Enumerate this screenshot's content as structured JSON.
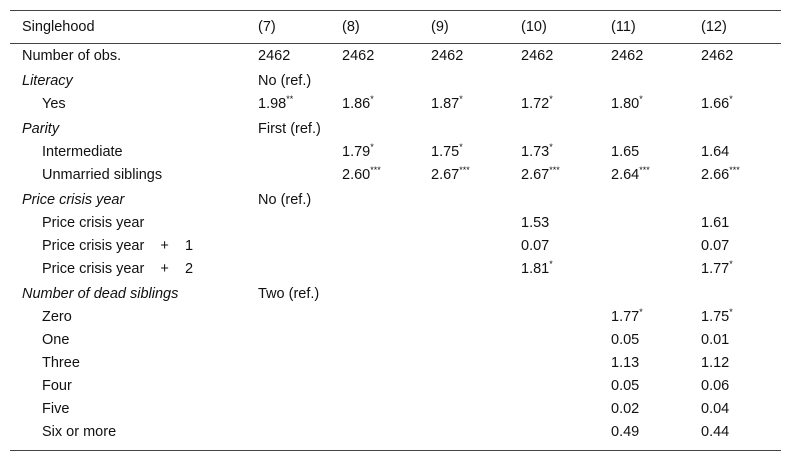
{
  "table": {
    "header": [
      "Singlehood",
      "(7)",
      "(8)",
      "(9)",
      "(10)",
      "(11)",
      "(12)"
    ],
    "rows": [
      {
        "label": "Number of obs.",
        "cells": [
          "2462",
          "2462",
          "2462",
          "2462",
          "2462",
          "2462"
        ]
      },
      {
        "label": "Literacy",
        "italic": true,
        "cells": [
          "No (ref.)",
          null,
          null,
          null,
          null,
          null
        ]
      },
      {
        "label": "Yes",
        "indent": true,
        "cells": [
          {
            "text": "1.98",
            "sig": "**"
          },
          {
            "text": "1.86",
            "sig": "*"
          },
          {
            "text": "1.87",
            "sig": "*"
          },
          {
            "text": "1.72",
            "sig": "*"
          },
          {
            "text": "1.80",
            "sig": "*"
          },
          {
            "text": "1.66",
            "sig": "*"
          }
        ]
      },
      {
        "label": "Parity",
        "italic": true,
        "cells": [
          "First (ref.)",
          null,
          null,
          null,
          null,
          null
        ]
      },
      {
        "label": "Intermediate",
        "indent": true,
        "cells": [
          null,
          {
            "text": "1.79",
            "sig": "*"
          },
          {
            "text": "1.75",
            "sig": "*"
          },
          {
            "text": "1.73",
            "sig": "*"
          },
          "1.65",
          "1.64"
        ]
      },
      {
        "label": "Unmarried siblings",
        "indent": true,
        "cells": [
          null,
          {
            "text": "2.60",
            "sig": "***"
          },
          {
            "text": "2.67",
            "sig": "***"
          },
          {
            "text": "2.67",
            "sig": "***"
          },
          {
            "text": "2.64",
            "sig": "***"
          },
          {
            "text": "2.66",
            "sig": "***"
          }
        ]
      },
      {
        "label": "Price crisis year",
        "italic": true,
        "cells": [
          "No (ref.)",
          null,
          null,
          null,
          null,
          null
        ]
      },
      {
        "label": "Price crisis year",
        "indent": true,
        "cells": [
          null,
          null,
          null,
          "1.53",
          null,
          "1.61"
        ]
      },
      {
        "label": "Price crisis year    +    1",
        "indent": true,
        "cells": [
          null,
          null,
          null,
          "0.07",
          null,
          "0.07"
        ]
      },
      {
        "label": "Price crisis year    +    2",
        "indent": true,
        "cells": [
          null,
          null,
          null,
          {
            "text": "1.81",
            "sig": "*"
          },
          null,
          {
            "text": "1.77",
            "sig": "*"
          }
        ]
      },
      {
        "label": "Number of dead siblings",
        "italic": true,
        "cells": [
          "Two (ref.)",
          null,
          null,
          null,
          null,
          null
        ]
      },
      {
        "label": "Zero",
        "indent": true,
        "cells": [
          null,
          null,
          null,
          null,
          {
            "text": "1.77",
            "sig": "*"
          },
          {
            "text": "1.75",
            "sig": "*"
          }
        ]
      },
      {
        "label": "One",
        "indent": true,
        "cells": [
          null,
          null,
          null,
          null,
          "0.05",
          "0.01"
        ]
      },
      {
        "label": "Three",
        "indent": true,
        "cells": [
          null,
          null,
          null,
          null,
          "1.13",
          "1.12"
        ]
      },
      {
        "label": "Four",
        "indent": true,
        "cells": [
          null,
          null,
          null,
          null,
          "0.05",
          "0.06"
        ]
      },
      {
        "label": "Five",
        "indent": true,
        "cells": [
          null,
          null,
          null,
          null,
          "0.02",
          "0.04"
        ]
      },
      {
        "label": "Six or more",
        "indent": true,
        "cells": [
          null,
          null,
          null,
          null,
          "0.49",
          "0.44"
        ]
      }
    ]
  }
}
